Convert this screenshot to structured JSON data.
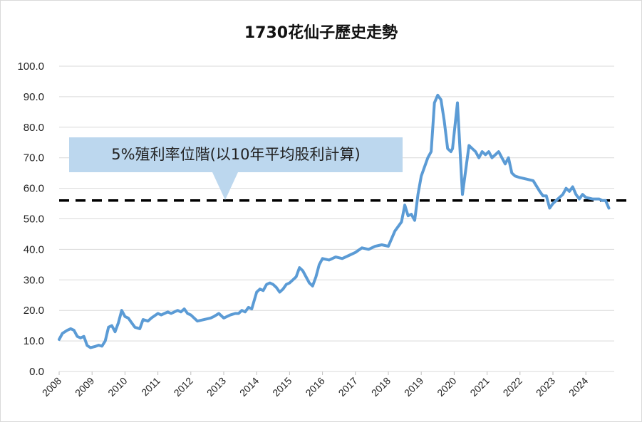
{
  "chart_data": {
    "type": "line",
    "title": "1730花仙子歷史走勢",
    "xlabel": "",
    "ylabel": "",
    "ylim": [
      0,
      100
    ],
    "y_ticks": [
      "0.0",
      "10.0",
      "20.0",
      "30.0",
      "40.0",
      "50.0",
      "60.0",
      "70.0",
      "80.0",
      "90.0",
      "100.0"
    ],
    "x_ticks": [
      "2008",
      "2009",
      "2010",
      "2011",
      "2012",
      "2013",
      "2014",
      "2015",
      "2016",
      "2017",
      "2018",
      "2019",
      "2020",
      "2021",
      "2022",
      "2023",
      "2024"
    ],
    "grid": "horizontal",
    "series": [
      {
        "color": "#5b9bd5",
        "x": [
          2008.0,
          2008.1,
          2008.25,
          2008.35,
          2008.45,
          2008.55,
          2008.65,
          2008.75,
          2008.85,
          2008.95,
          2009.1,
          2009.2,
          2009.3,
          2009.4,
          2009.5,
          2009.6,
          2009.7,
          2009.8,
          2009.9,
          2010.0,
          2010.1,
          2010.2,
          2010.3,
          2010.45,
          2010.55,
          2010.7,
          2010.8,
          2011.0,
          2011.1,
          2011.2,
          2011.3,
          2011.4,
          2011.5,
          2011.6,
          2011.7,
          2011.8,
          2011.9,
          2012.0,
          2012.2,
          2012.4,
          2012.6,
          2012.7,
          2012.85,
          2013.0,
          2013.2,
          2013.35,
          2013.45,
          2013.55,
          2013.65,
          2013.75,
          2013.85,
          2014.0,
          2014.1,
          2014.2,
          2014.3,
          2014.4,
          2014.5,
          2014.6,
          2014.7,
          2014.8,
          2014.9,
          2015.0,
          2015.1,
          2015.2,
          2015.3,
          2015.4,
          2015.5,
          2015.6,
          2015.7,
          2015.8,
          2015.9,
          2016.0,
          2016.2,
          2016.4,
          2016.6,
          2016.8,
          2017.0,
          2017.2,
          2017.4,
          2017.6,
          2017.8,
          2018.0,
          2018.2,
          2018.4,
          2018.5,
          2018.6,
          2018.7,
          2018.8,
          2018.9,
          2019.0,
          2019.1,
          2019.2,
          2019.3,
          2019.4,
          2019.5,
          2019.6,
          2019.7,
          2019.8,
          2019.9,
          2019.95,
          2020.1,
          2020.25,
          2020.35,
          2020.45,
          2020.55,
          2020.65,
          2020.75,
          2020.85,
          2020.95,
          2021.05,
          2021.15,
          2021.25,
          2021.35,
          2021.45,
          2021.55,
          2021.65,
          2021.75,
          2021.85,
          2022.0,
          2022.2,
          2022.4,
          2022.6,
          2022.7,
          2022.8,
          2022.9,
          2023.0,
          2023.2,
          2023.3,
          2023.4,
          2023.5,
          2023.6,
          2023.7,
          2023.8,
          2023.9,
          2024.0,
          2024.2,
          2024.4,
          2024.5,
          2024.6,
          2024.7
        ],
        "values": [
          10.5,
          12.5,
          13.5,
          14.0,
          13.5,
          11.5,
          11.0,
          11.5,
          8.5,
          7.8,
          8.2,
          8.6,
          8.3,
          10.0,
          14.5,
          15.0,
          13.0,
          16.0,
          20.0,
          18.0,
          17.5,
          16.0,
          14.5,
          14.0,
          17.0,
          16.5,
          17.5,
          19.0,
          18.5,
          19.0,
          19.5,
          19.0,
          19.5,
          20.0,
          19.5,
          20.5,
          19.0,
          18.5,
          16.5,
          17.0,
          17.5,
          18.0,
          19.0,
          17.5,
          18.5,
          19.0,
          19.0,
          20.0,
          19.5,
          21.0,
          20.5,
          26.0,
          27.0,
          26.5,
          28.5,
          29.0,
          28.5,
          27.5,
          26.0,
          27.0,
          28.5,
          29.0,
          30.0,
          31.0,
          34.0,
          33.0,
          31.0,
          29.0,
          28.0,
          31.0,
          35.0,
          37.0,
          36.5,
          37.5,
          37.0,
          38.0,
          39.0,
          40.5,
          40.0,
          41.0,
          41.5,
          41.0,
          46.0,
          49.0,
          54.5,
          51.0,
          51.5,
          49.5,
          58.0,
          64.0,
          67.0,
          70.0,
          72.0,
          88.0,
          90.5,
          89.0,
          82.0,
          73.0,
          72.0,
          73.0,
          88.0,
          58.0,
          66.0,
          74.0,
          73.0,
          72.0,
          70.0,
          72.0,
          71.0,
          72.0,
          70.0,
          71.0,
          72.0,
          70.0,
          68.0,
          70.0,
          65.0,
          64.0,
          63.5,
          63.0,
          62.5,
          59.0,
          57.5,
          57.5,
          53.5,
          55.0,
          57.0,
          58.0,
          60.0,
          59.0,
          60.5,
          58.0,
          56.5,
          58.0,
          57.0,
          56.5,
          56.5,
          56.0,
          56.0,
          53.5
        ]
      }
    ],
    "reference_line": {
      "value": 56.0,
      "style": "dashed",
      "color": "#000000"
    },
    "annotation": "5%殖利率位階(以10年平均股利計算)"
  }
}
